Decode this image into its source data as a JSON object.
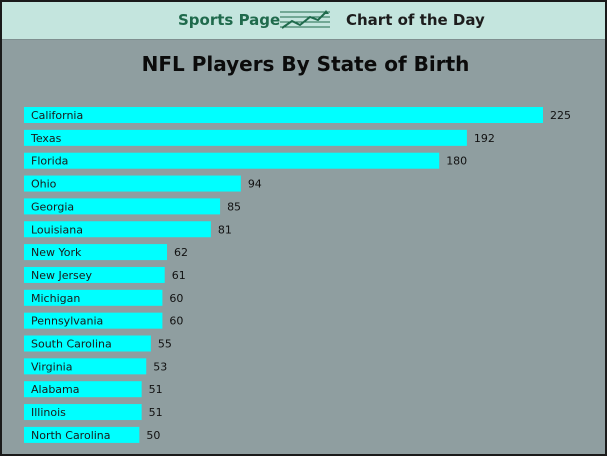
{
  "header": {
    "brand": "Sports Page",
    "subtitle": "Chart of the Day"
  },
  "colors": {
    "bar": "#00ffff",
    "background": "#8f9ea0",
    "header_bg": "#c4e5de",
    "brand": "#1f6a4c"
  },
  "chart_data": {
    "type": "bar",
    "orientation": "horizontal",
    "title": "NFL Players By State of Birth",
    "categories": [
      "California",
      "Texas",
      "Florida",
      "Ohio",
      "Georgia",
      "Louisiana",
      "New York",
      "New Jersey",
      "Michigan",
      "Pennsylvania",
      "South Carolina",
      "Virginia",
      "Alabama",
      "Illinois",
      "North Carolina"
    ],
    "values": [
      225,
      192,
      180,
      94,
      85,
      81,
      62,
      61,
      60,
      60,
      55,
      53,
      51,
      51,
      50
    ],
    "xlabel": "",
    "ylabel": "",
    "xlim": [
      0,
      225
    ],
    "grid": false,
    "legend": "none"
  }
}
